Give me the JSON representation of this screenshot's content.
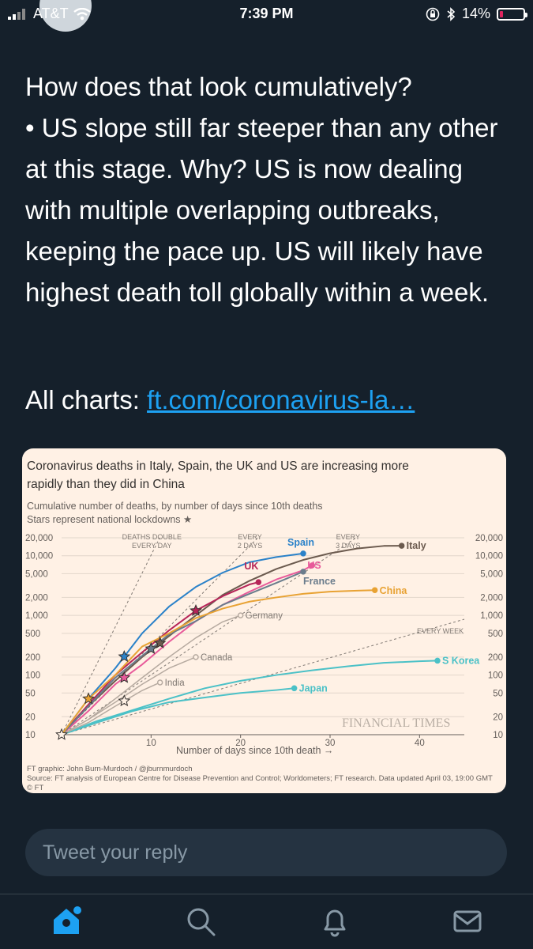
{
  "status_bar": {
    "carrier": "AT&T",
    "time": "7:39 PM",
    "battery": "14%",
    "battery_level": 14
  },
  "tweet": {
    "paragraph1": "How does that look cumulatively?\n• US slope still far steeper than any other at this stage. Why? US is now dealing with multiple overlapping outbreaks, keeping the pace up. US will likely have highest death toll globally within a week.",
    "links_prefix": "All charts: ",
    "link_text": "ft.com/coronavirus-la…"
  },
  "chart_data": {
    "type": "line",
    "title": "Coronavirus deaths in Italy, Spain, the UK and US are increasing more rapidly than they did in China",
    "subtitle": "Cumulative number of deaths, by number of days since 10th deaths",
    "subtitle2": "Stars represent national lockdowns ★",
    "xlabel": "Number of days since 10th death →",
    "ylabel": "",
    "yscale": "log",
    "xlim": [
      0,
      45
    ],
    "ylim": [
      10,
      20000
    ],
    "x_ticks": [
      "10",
      "20",
      "30",
      "40"
    ],
    "x_tick_values": [
      10,
      20,
      30,
      40
    ],
    "y_ticks": [
      "20,000",
      "10,000",
      "5,000",
      "2,000",
      "1,000",
      "500",
      "200",
      "100",
      "50",
      "20",
      "10"
    ],
    "y_tick_values": [
      20000,
      10000,
      5000,
      2000,
      1000,
      500,
      200,
      100,
      50,
      20,
      10
    ],
    "guides": [
      {
        "label1": "DEATHS DOUBLE",
        "label2": "EVERY DAY",
        "doubling": 1
      },
      {
        "label1": "EVERY",
        "label2": "2 DAYS",
        "doubling": 2
      },
      {
        "label1": "EVERY",
        "label2": "3 DAYS",
        "doubling": 3
      },
      {
        "label1": "EVERY WEEK",
        "label2": "",
        "doubling": 7
      }
    ],
    "series": [
      {
        "name": "Italy",
        "color": "#6b5a4e",
        "highlight": true,
        "x": [
          0,
          3,
          6,
          9,
          12,
          15,
          18,
          21,
          24,
          27,
          30,
          33,
          36,
          38
        ],
        "y": [
          10,
          30,
          80,
          200,
          450,
          1000,
          2200,
          3800,
          6000,
          8500,
          11000,
          13200,
          14600,
          14700
        ]
      },
      {
        "name": "Spain",
        "color": "#2b82c9",
        "highlight": true,
        "x": [
          0,
          3,
          6,
          9,
          12,
          15,
          18,
          21,
          24,
          27
        ],
        "y": [
          10,
          40,
          130,
          500,
          1400,
          3000,
          5200,
          7800,
          9500,
          10900
        ]
      },
      {
        "name": "US",
        "color": "#e85a9a",
        "highlight": true,
        "x": [
          0,
          3,
          6,
          9,
          12,
          15,
          18,
          21,
          24,
          27,
          28
        ],
        "y": [
          10,
          25,
          70,
          150,
          360,
          800,
          1500,
          2500,
          4000,
          5700,
          6900
        ]
      },
      {
        "name": "UK",
        "color": "#b62458",
        "highlight": true,
        "x": [
          0,
          3,
          6,
          9,
          12,
          15,
          18,
          21,
          22
        ],
        "y": [
          10,
          32,
          100,
          240,
          560,
          1200,
          2100,
          3300,
          3600
        ]
      },
      {
        "name": "France",
        "color": "#6a7c8c",
        "highlight": true,
        "x": [
          0,
          3,
          6,
          9,
          12,
          15,
          18,
          21,
          24,
          27
        ],
        "y": [
          10,
          30,
          90,
          210,
          480,
          800,
          1500,
          2300,
          3500,
          5400
        ]
      },
      {
        "name": "China",
        "color": "#e8a233",
        "highlight": true,
        "x": [
          0,
          3,
          6,
          9,
          12,
          15,
          18,
          21,
          24,
          27,
          30,
          33,
          35
        ],
        "y": [
          10,
          40,
          100,
          300,
          500,
          900,
          1300,
          1700,
          2000,
          2300,
          2500,
          2600,
          2650
        ]
      },
      {
        "name": "Germany",
        "color": "#b6aaa0",
        "highlight": false,
        "x": [
          0,
          3,
          6,
          9,
          12,
          15,
          18,
          20
        ],
        "y": [
          10,
          18,
          40,
          90,
          200,
          420,
          780,
          1000
        ]
      },
      {
        "name": "S Korea",
        "color": "#4bc1c7",
        "highlight": true,
        "x": [
          0,
          4,
          8,
          12,
          16,
          20,
          24,
          28,
          32,
          36,
          40,
          42
        ],
        "y": [
          10,
          17,
          26,
          40,
          60,
          80,
          100,
          120,
          140,
          160,
          170,
          174
        ]
      },
      {
        "name": "Japan",
        "color": "#4bc1c7",
        "highlight": true,
        "x": [
          0,
          4,
          8,
          12,
          16,
          20,
          24,
          26
        ],
        "y": [
          10,
          16,
          25,
          35,
          42,
          50,
          56,
          60
        ]
      },
      {
        "name": "Canada",
        "color": "#b6aaa0",
        "highlight": false,
        "x": [
          0,
          3,
          6,
          9,
          12,
          15
        ],
        "y": [
          10,
          18,
          35,
          70,
          130,
          200
        ]
      },
      {
        "name": "India",
        "color": "#b6aaa0",
        "highlight": false,
        "x": [
          0,
          3,
          6,
          9,
          11
        ],
        "y": [
          10,
          16,
          30,
          55,
          75
        ]
      }
    ],
    "lockdowns": [
      {
        "series": "China",
        "x": 3
      },
      {
        "series": "US",
        "x": 7
      },
      {
        "series": "Spain",
        "x": 7
      },
      {
        "series": "France",
        "x": 10
      },
      {
        "series": "Italy",
        "x": 11
      },
      {
        "series": "UK",
        "x": 15
      },
      {
        "series": "Canada",
        "x": 0
      },
      {
        "series": "India",
        "x": 7
      }
    ],
    "watermark": "FINANCIAL TIMES",
    "credit": "FT graphic: John Burn-Murdoch / @jburnmurdoch",
    "source": "Source: FT analysis of European Centre for Disease Prevention and Control; Worldometers; FT research. Data updated April 03, 19:00 GMT",
    "logo_text": "© FT"
  },
  "reply": {
    "placeholder": "Tweet your reply"
  },
  "tab_bar": {
    "items": [
      "home-icon",
      "search-icon",
      "notifications-icon",
      "messages-icon"
    ]
  },
  "colors": {
    "background": "#15202b",
    "link": "#1da1f2",
    "card": "#fff1e5",
    "reply_box": "#253341"
  }
}
